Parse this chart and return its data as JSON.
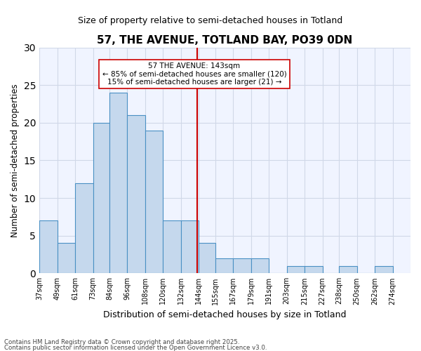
{
  "title": "57, THE AVENUE, TOTLAND BAY, PO39 0DN",
  "subtitle": "Size of property relative to semi-detached houses in Totland",
  "xlabel": "Distribution of semi-detached houses by size in Totland",
  "ylabel": "Number of semi-detached properties",
  "bins": [
    "37sqm",
    "49sqm",
    "61sqm",
    "73sqm",
    "84sqm",
    "96sqm",
    "108sqm",
    "120sqm",
    "132sqm",
    "144sqm",
    "155sqm",
    "167sqm",
    "179sqm",
    "191sqm",
    "203sqm",
    "215sqm",
    "227sqm",
    "238sqm",
    "250sqm",
    "262sqm",
    "274sqm"
  ],
  "bin_edges": [
    37,
    49,
    61,
    73,
    84,
    96,
    108,
    120,
    132,
    144,
    155,
    167,
    179,
    191,
    203,
    215,
    227,
    238,
    250,
    262,
    274
  ],
  "values": [
    7,
    4,
    12,
    20,
    24,
    21,
    19,
    7,
    7,
    4,
    2,
    2,
    2,
    0,
    1,
    1,
    0,
    1,
    0,
    1
  ],
  "bar_color": "#c5d8ed",
  "bar_edge_color": "#4a90c4",
  "property_size": 143,
  "property_label": "57 THE AVENUE: 143sqm",
  "pct_smaller": 85,
  "n_smaller": 120,
  "pct_larger": 15,
  "n_larger": 21,
  "vline_color": "#cc0000",
  "annotation_box_color": "#cc0000",
  "grid_color": "#d0d8e8",
  "bg_color": "#f0f4ff",
  "footer1": "Contains HM Land Registry data © Crown copyright and database right 2025.",
  "footer2": "Contains public sector information licensed under the Open Government Licence v3.0.",
  "ylim": [
    0,
    30
  ],
  "yticks": [
    0,
    5,
    10,
    15,
    20,
    25,
    30
  ]
}
